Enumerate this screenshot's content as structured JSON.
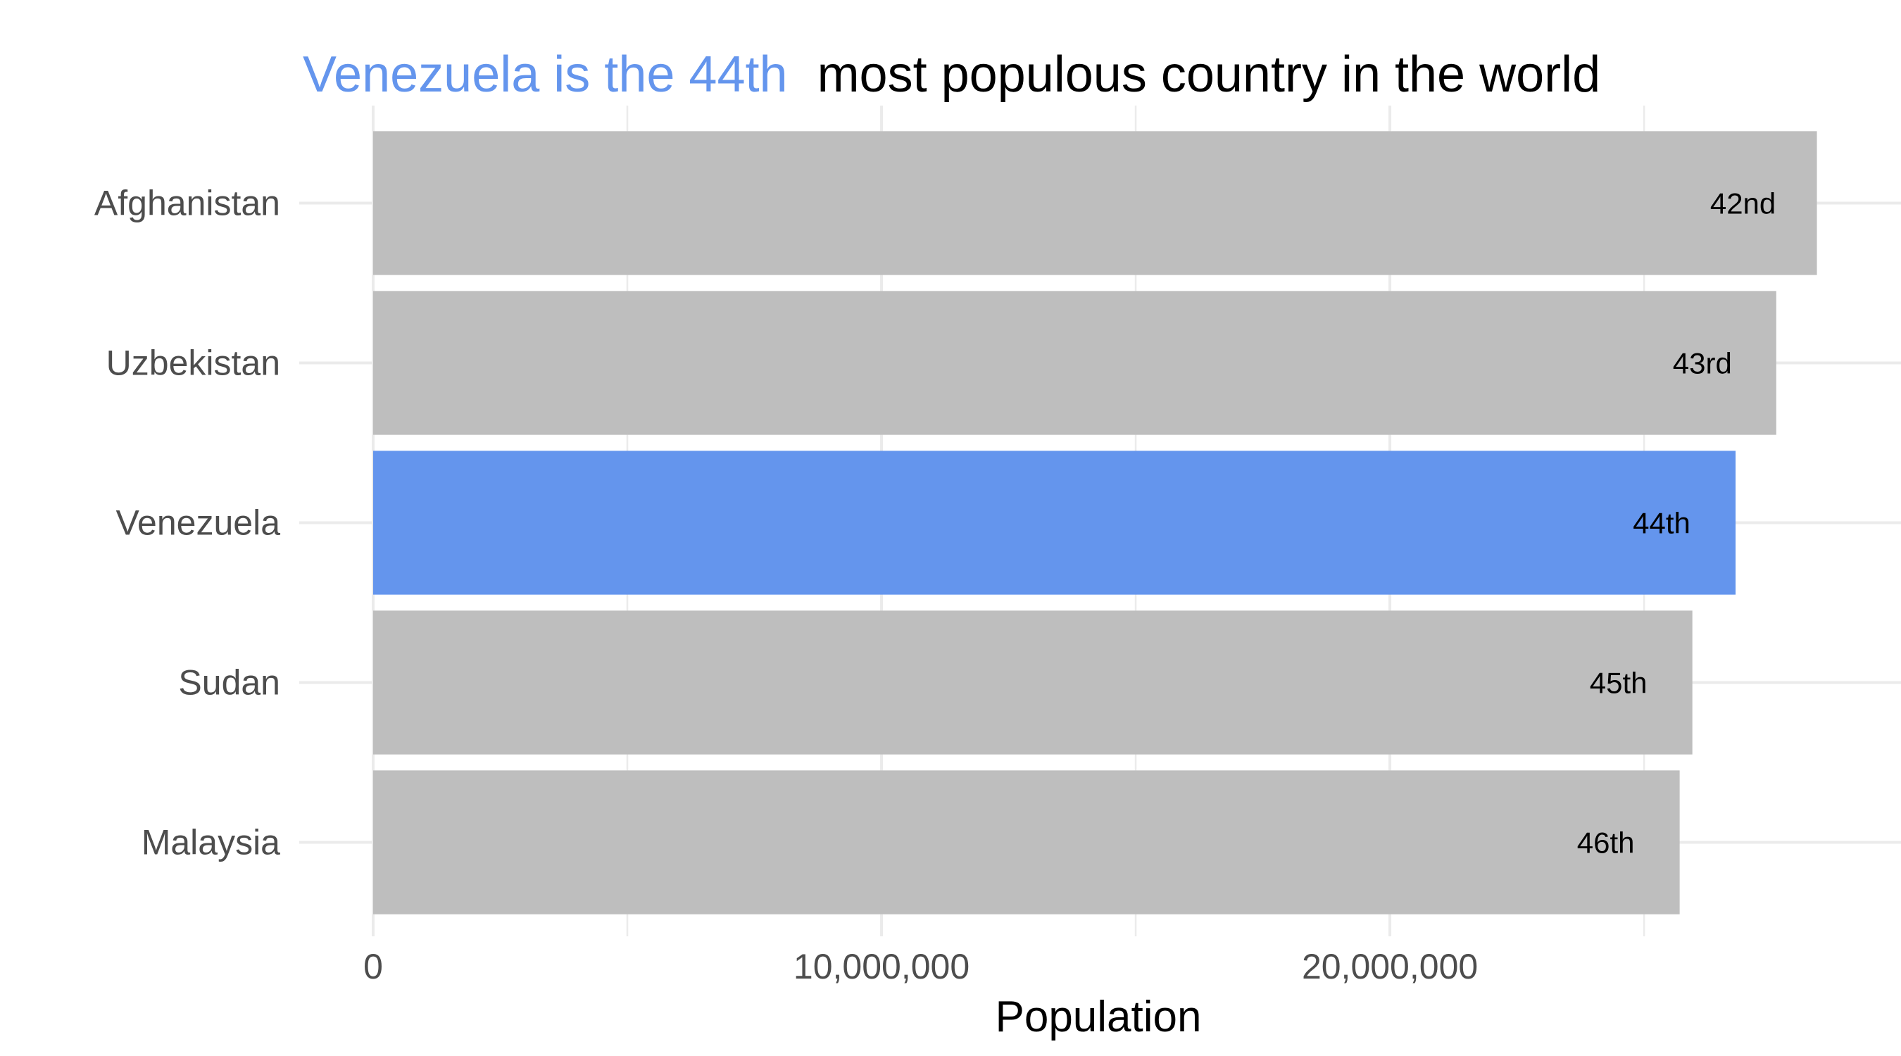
{
  "chart_data": {
    "type": "bar",
    "orientation": "horizontal",
    "title": {
      "highlight": "Venezuela is the 44th",
      "rest": "most populous country in the world"
    },
    "categories": [
      "Afghanistan",
      "Uzbekistan",
      "Venezuela",
      "Sudan",
      "Malaysia"
    ],
    "values": [
      28400000,
      27600000,
      26800000,
      25950000,
      25700000
    ],
    "rank_labels": [
      "42nd",
      "43rd",
      "44th",
      "45th",
      "46th"
    ],
    "highlight_category": "Venezuela",
    "xlabel": "Population",
    "ylabel": "",
    "xlim": [
      0,
      29500000
    ],
    "x_ticks": [
      {
        "value": 0,
        "label": "0"
      },
      {
        "value": 10000000,
        "label": "10,000,000"
      },
      {
        "value": 20000000,
        "label": "20,000,000"
      }
    ],
    "x_minor_ticks": [
      5000000,
      15000000,
      25000000
    ],
    "grid": true,
    "colors": {
      "bar": "#bebebe",
      "highlight": "#6495ed",
      "grid": "#ebebeb",
      "title_rest": "#000000"
    }
  }
}
